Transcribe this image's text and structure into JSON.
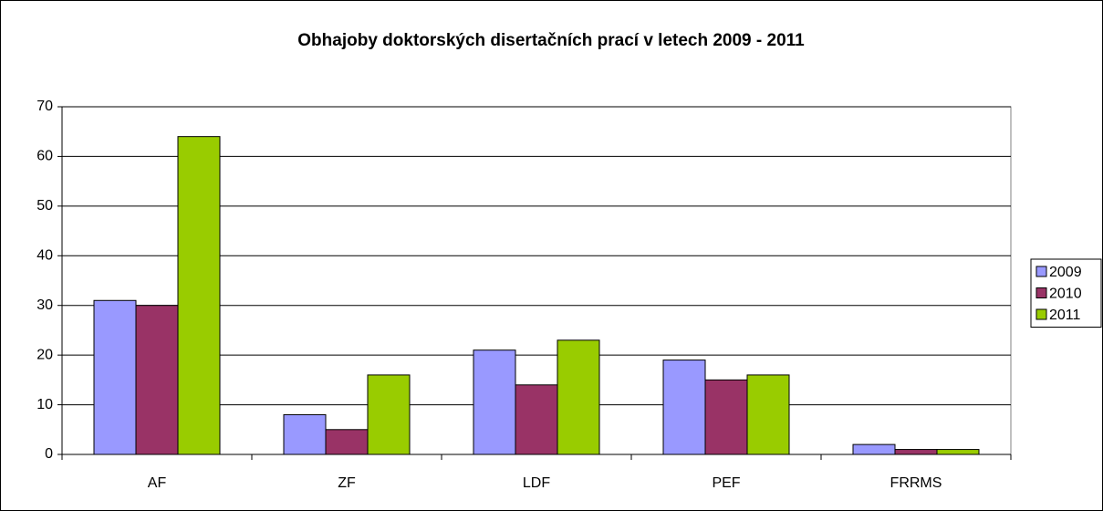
{
  "chart_data": {
    "type": "bar",
    "title": "Obhajoby doktorských disertačních prací v letech 2009 - 2011",
    "categories": [
      "AF",
      "ZF",
      "LDF",
      "PEF",
      "FRRMS"
    ],
    "series": [
      {
        "name": "2009",
        "color": "#9999ff",
        "values": [
          31,
          8,
          21,
          19,
          2
        ]
      },
      {
        "name": "2010",
        "color": "#993366",
        "values": [
          30,
          5,
          14,
          15,
          1
        ]
      },
      {
        "name": "2011",
        "color": "#99cc00",
        "values": [
          64,
          16,
          23,
          16,
          1
        ]
      }
    ],
    "ylim": [
      0,
      70
    ],
    "yticks": [
      0,
      10,
      20,
      30,
      40,
      50,
      60,
      70
    ],
    "grid": true,
    "legend": "right"
  }
}
